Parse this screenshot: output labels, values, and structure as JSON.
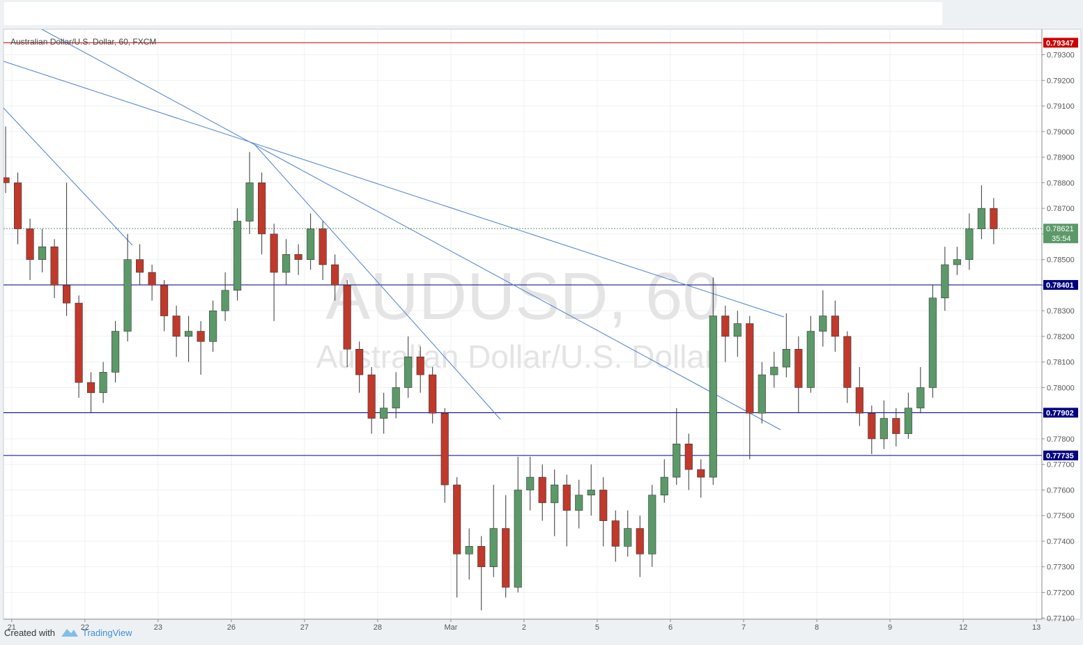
{
  "chart_data": {
    "type": "candlestick",
    "title": "Australian Dollar/U.S. Dollar, 60, FXCM",
    "watermark": "AUDUSD, 60",
    "watermark_subtitle": "Australian Dollar/U.S. Dollar",
    "up_color": "#5b9a68",
    "down_color": "#c0392b",
    "grid": true,
    "xlim": [
      -2.7,
      337.8
    ],
    "xticks": [
      {
        "value": 0,
        "label": "21"
      },
      {
        "value": 24,
        "label": "22"
      },
      {
        "value": 48,
        "label": "23"
      },
      {
        "value": 72,
        "label": "26"
      },
      {
        "value": 96,
        "label": "27"
      },
      {
        "value": 120,
        "label": "28"
      },
      {
        "value": 144,
        "label": "Mar"
      },
      {
        "value": 168,
        "label": "2"
      },
      {
        "value": 192,
        "label": "5"
      },
      {
        "value": 216,
        "label": "6"
      },
      {
        "value": 240,
        "label": "7"
      },
      {
        "value": 264,
        "label": "8"
      },
      {
        "value": 288,
        "label": "9"
      },
      {
        "value": 312,
        "label": "12"
      },
      {
        "value": 336,
        "label": "13"
      }
    ],
    "ylim": [
      0.77098,
      0.79405
    ],
    "yticks": [
      {
        "value": 0.771,
        "label": "0.77100"
      },
      {
        "value": 0.772,
        "label": "0.77200"
      },
      {
        "value": 0.773,
        "label": "0.77300"
      },
      {
        "value": 0.774,
        "label": "0.77400"
      },
      {
        "value": 0.775,
        "label": "0.77500"
      },
      {
        "value": 0.776,
        "label": "0.77600"
      },
      {
        "value": 0.777,
        "label": "0.77700"
      },
      {
        "value": 0.778,
        "label": "0.77800"
      },
      {
        "value": 0.779,
        "label": "0.77900"
      },
      {
        "value": 0.78,
        "label": "0.78000"
      },
      {
        "value": 0.781,
        "label": "0.78100"
      },
      {
        "value": 0.782,
        "label": "0.78200"
      },
      {
        "value": 0.783,
        "label": "0.78300"
      },
      {
        "value": 0.784,
        "label": "0.78400"
      },
      {
        "value": 0.785,
        "label": "0.78500"
      },
      {
        "value": 0.786,
        "label": "0.78600"
      },
      {
        "value": 0.787,
        "label": "0.78700"
      },
      {
        "value": 0.788,
        "label": "0.78800"
      },
      {
        "value": 0.789,
        "label": "0.78900"
      },
      {
        "value": 0.79,
        "label": "0.79000"
      },
      {
        "value": 0.791,
        "label": "0.79100"
      },
      {
        "value": 0.792,
        "label": "0.79200"
      },
      {
        "value": 0.793,
        "label": "0.79300"
      }
    ],
    "levels": [
      {
        "value": 0.79347,
        "color": "#cc0000"
      },
      {
        "value": 0.78401,
        "color": "#000080"
      },
      {
        "value": 0.77902,
        "color": "#000080"
      },
      {
        "value": 0.77735,
        "color": "#000080"
      }
    ],
    "last_price": {
      "value": 0.78621,
      "color": "#5b9a68",
      "countdown": "35:54"
    },
    "x": [
      -2,
      2,
      6,
      10,
      14,
      18,
      22,
      26,
      30,
      34,
      38,
      42,
      46,
      50,
      54,
      58,
      62,
      66,
      70,
      74,
      78,
      82,
      86,
      90,
      94,
      98,
      102,
      106,
      110,
      114,
      118,
      122,
      126,
      130,
      134,
      138,
      142,
      146,
      150,
      154,
      158,
      162,
      166,
      170,
      174,
      178,
      182,
      186,
      190,
      194,
      198,
      202,
      206,
      210,
      214,
      218,
      222,
      226,
      230,
      234,
      238,
      242,
      246,
      250,
      254,
      258,
      262,
      266,
      270,
      274,
      278,
      282,
      286,
      290,
      294,
      298,
      302,
      306,
      310,
      314,
      318,
      322
    ],
    "open": [
      0.7882,
      0.788,
      0.7862,
      0.785,
      0.7855,
      0.784,
      0.7833,
      0.7802,
      0.7798,
      0.7806,
      0.7822,
      0.785,
      0.7845,
      0.784,
      0.7828,
      0.782,
      0.7822,
      0.7818,
      0.783,
      0.7838,
      0.7865,
      0.788,
      0.786,
      0.7845,
      0.7852,
      0.785,
      0.7862,
      0.7848,
      0.784,
      0.7815,
      0.7805,
      0.7788,
      0.7792,
      0.78,
      0.7812,
      0.7805,
      0.779,
      0.7762,
      0.7735,
      0.7738,
      0.773,
      0.7745,
      0.7722,
      0.776,
      0.7765,
      0.7755,
      0.7762,
      0.7752,
      0.7758,
      0.776,
      0.7748,
      0.7738,
      0.7745,
      0.7735,
      0.7758,
      0.7765,
      0.7778,
      0.7768,
      0.7765,
      0.7828,
      0.782,
      0.7825,
      0.779,
      0.7805,
      0.7808,
      0.7815,
      0.78,
      0.7822,
      0.7828,
      0.782,
      0.78,
      0.779,
      0.778,
      0.7788,
      0.7782,
      0.7792,
      0.78,
      0.7835,
      0.7848,
      0.785,
      0.7862,
      0.787
    ],
    "high": [
      0.7902,
      0.7884,
      0.7866,
      0.7862,
      0.7858,
      0.788,
      0.7836,
      0.7806,
      0.781,
      0.7826,
      0.786,
      0.7856,
      0.7848,
      0.7842,
      0.7832,
      0.7828,
      0.7826,
      0.7834,
      0.7845,
      0.787,
      0.7892,
      0.7884,
      0.7864,
      0.7858,
      0.7856,
      0.7868,
      0.7865,
      0.7852,
      0.7842,
      0.7818,
      0.7808,
      0.7798,
      0.7806,
      0.782,
      0.7816,
      0.7808,
      0.7792,
      0.7765,
      0.7745,
      0.7742,
      0.7762,
      0.7758,
      0.7773,
      0.7773,
      0.777,
      0.7768,
      0.7766,
      0.7764,
      0.777,
      0.7765,
      0.7752,
      0.7752,
      0.775,
      0.7762,
      0.7772,
      0.7792,
      0.7782,
      0.7772,
      0.7843,
      0.7832,
      0.783,
      0.7828,
      0.781,
      0.7814,
      0.7829,
      0.782,
      0.7828,
      0.7838,
      0.7834,
      0.7822,
      0.7808,
      0.7793,
      0.7795,
      0.7792,
      0.7798,
      0.7808,
      0.784,
      0.7855,
      0.7855,
      0.7868,
      0.7879,
      0.7874
    ],
    "low": [
      0.7876,
      0.7856,
      0.7842,
      0.7845,
      0.7835,
      0.7828,
      0.7796,
      0.779,
      0.7794,
      0.7802,
      0.7818,
      0.784,
      0.7834,
      0.7822,
      0.7812,
      0.781,
      0.7805,
      0.7814,
      0.7826,
      0.7834,
      0.786,
      0.7852,
      0.7826,
      0.784,
      0.7844,
      0.7846,
      0.7842,
      0.7834,
      0.7808,
      0.7798,
      0.7782,
      0.7782,
      0.7788,
      0.7796,
      0.7798,
      0.7786,
      0.7755,
      0.7718,
      0.7725,
      0.7713,
      0.7726,
      0.7718,
      0.772,
      0.7752,
      0.7748,
      0.7742,
      0.7738,
      0.7745,
      0.775,
      0.7738,
      0.7732,
      0.7734,
      0.7726,
      0.773,
      0.7755,
      0.7762,
      0.776,
      0.7757,
      0.7762,
      0.781,
      0.7812,
      0.7772,
      0.7786,
      0.78,
      0.7804,
      0.779,
      0.7798,
      0.7816,
      0.7814,
      0.7794,
      0.7785,
      0.7774,
      0.7776,
      0.7777,
      0.778,
      0.779,
      0.7796,
      0.783,
      0.7844,
      0.7846,
      0.7858,
      0.7856
    ],
    "close": [
      0.788,
      0.7862,
      0.785,
      0.7855,
      0.784,
      0.7833,
      0.7802,
      0.7798,
      0.7806,
      0.7822,
      0.785,
      0.7845,
      0.784,
      0.7828,
      0.782,
      0.7822,
      0.7818,
      0.783,
      0.7838,
      0.7865,
      0.788,
      0.786,
      0.7845,
      0.7852,
      0.785,
      0.7862,
      0.7848,
      0.784,
      0.7815,
      0.7805,
      0.7788,
      0.7792,
      0.78,
      0.7812,
      0.7805,
      0.779,
      0.7762,
      0.7735,
      0.7738,
      0.773,
      0.7745,
      0.7722,
      0.776,
      0.7765,
      0.7755,
      0.7762,
      0.7752,
      0.7758,
      0.776,
      0.7748,
      0.7738,
      0.7745,
      0.7735,
      0.7758,
      0.7765,
      0.7778,
      0.7768,
      0.7765,
      0.7828,
      0.782,
      0.7825,
      0.779,
      0.7805,
      0.7808,
      0.7815,
      0.78,
      0.7822,
      0.7828,
      0.782,
      0.78,
      0.779,
      0.778,
      0.7788,
      0.7782,
      0.7792,
      0.78,
      0.7835,
      0.7848,
      0.785,
      0.7862,
      0.787,
      0.7862
    ]
  },
  "footer": {
    "prefix": "Created with",
    "brand": "TradingView"
  }
}
